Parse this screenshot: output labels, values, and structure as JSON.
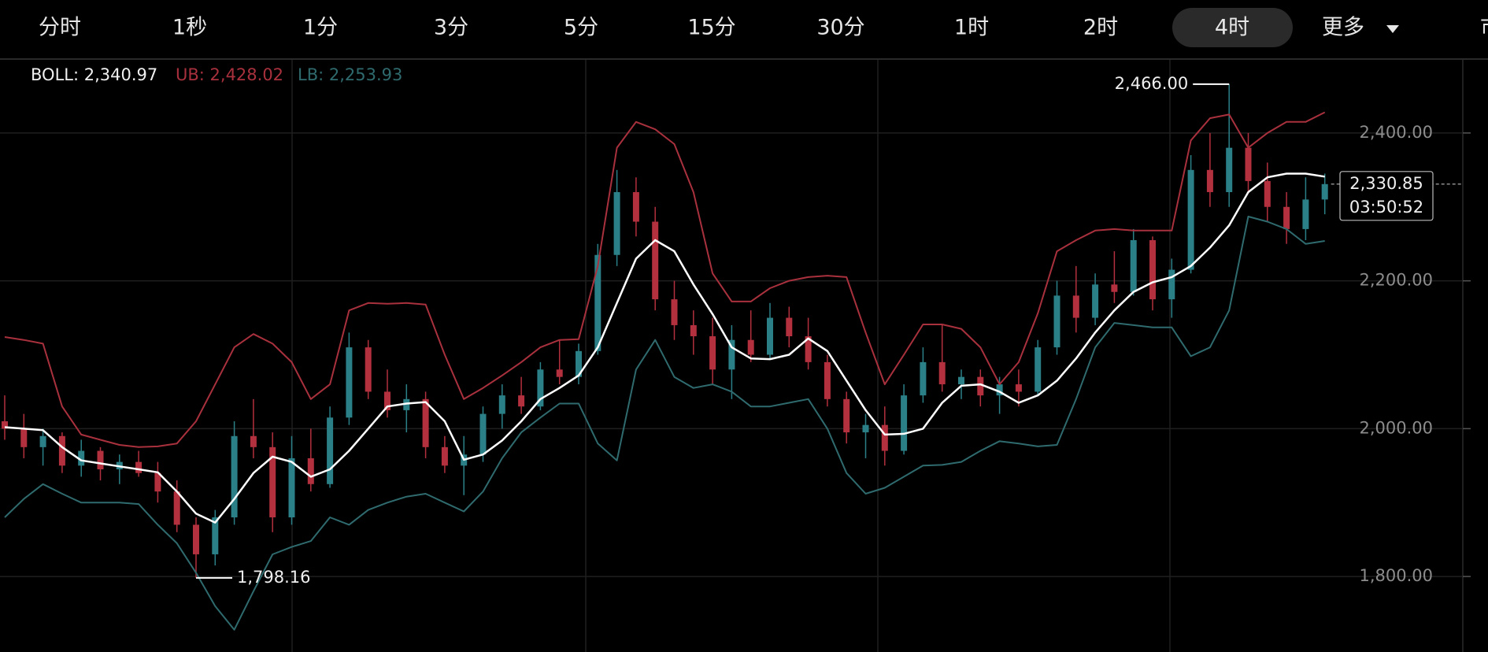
{
  "toolbar": {
    "tabs": [
      {
        "label": "分时"
      },
      {
        "label": "1秒"
      },
      {
        "label": "1分"
      },
      {
        "label": "3分"
      },
      {
        "label": "5分"
      },
      {
        "label": "15分"
      },
      {
        "label": "30分"
      },
      {
        "label": "1时"
      },
      {
        "label": "2时"
      },
      {
        "label": "4时",
        "active": true
      },
      {
        "label": "更多"
      }
    ],
    "edge_text": "市"
  },
  "chart_data": {
    "type": "candlestick",
    "legend": {
      "boll": "BOLL: 2,340.97",
      "ub": "UB: 2,428.02",
      "lb": "LB: 2,253.93"
    },
    "up_color": "#2b8088",
    "down_color": "#b3303e",
    "ylim": [
      1700,
      2500
    ],
    "yticks": [
      {
        "value": 1800,
        "label": "1,800.00"
      },
      {
        "value": 2000,
        "label": "2,000.00"
      },
      {
        "value": 2200,
        "label": "2,200.00"
      },
      {
        "value": 2400,
        "label": "2,400.00"
      }
    ],
    "grid": true,
    "candles": [
      [
        2010,
        2045,
        1985,
        2000
      ],
      [
        2000,
        2020,
        1960,
        1975
      ],
      [
        1975,
        2000,
        1950,
        1990
      ],
      [
        1990,
        1995,
        1940,
        1950
      ],
      [
        1950,
        1985,
        1935,
        1970
      ],
      [
        1970,
        1975,
        1930,
        1945
      ],
      [
        1945,
        1965,
        1925,
        1955
      ],
      [
        1955,
        1970,
        1935,
        1940
      ],
      [
        1940,
        1955,
        1900,
        1915
      ],
      [
        1915,
        1930,
        1860,
        1870
      ],
      [
        1870,
        1880,
        1798.16,
        1830
      ],
      [
        1830,
        1890,
        1815,
        1880
      ],
      [
        1880,
        2010,
        1870,
        1990
      ],
      [
        1990,
        2040,
        1960,
        1975
      ],
      [
        1975,
        1995,
        1860,
        1880
      ],
      [
        1880,
        1990,
        1870,
        1960
      ],
      [
        1960,
        2000,
        1915,
        1925
      ],
      [
        1925,
        2030,
        1920,
        2015
      ],
      [
        2015,
        2130,
        2005,
        2110
      ],
      [
        2110,
        2120,
        2040,
        2050
      ],
      [
        2050,
        2080,
        2015,
        2025
      ],
      [
        2025,
        2060,
        1995,
        2040
      ],
      [
        2040,
        2050,
        1960,
        1975
      ],
      [
        1975,
        1990,
        1940,
        1950
      ],
      [
        1950,
        1990,
        1910,
        1965
      ],
      [
        1965,
        2030,
        1955,
        2020
      ],
      [
        2020,
        2060,
        2000,
        2045
      ],
      [
        2045,
        2070,
        2020,
        2030
      ],
      [
        2030,
        2090,
        2025,
        2080
      ],
      [
        2080,
        2120,
        2060,
        2070
      ],
      [
        2070,
        2115,
        2060,
        2105
      ],
      [
        2105,
        2250,
        2100,
        2235
      ],
      [
        2235,
        2350,
        2220,
        2320
      ],
      [
        2320,
        2340,
        2260,
        2280
      ],
      [
        2280,
        2300,
        2160,
        2175
      ],
      [
        2175,
        2200,
        2120,
        2140
      ],
      [
        2140,
        2160,
        2100,
        2125
      ],
      [
        2125,
        2150,
        2060,
        2080
      ],
      [
        2080,
        2140,
        2040,
        2120
      ],
      [
        2120,
        2160,
        2090,
        2100
      ],
      [
        2100,
        2170,
        2095,
        2150
      ],
      [
        2150,
        2165,
        2110,
        2125
      ],
      [
        2125,
        2150,
        2080,
        2090
      ],
      [
        2090,
        2100,
        2030,
        2040
      ],
      [
        2040,
        2050,
        1980,
        1995
      ],
      [
        1995,
        2020,
        1960,
        2005
      ],
      [
        2005,
        2030,
        1950,
        1970
      ],
      [
        1970,
        2060,
        1965,
        2045
      ],
      [
        2045,
        2110,
        2035,
        2090
      ],
      [
        2090,
        2140,
        2050,
        2060
      ],
      [
        2060,
        2080,
        2040,
        2070
      ],
      [
        2070,
        2080,
        2030,
        2045
      ],
      [
        2045,
        2070,
        2020,
        2060
      ],
      [
        2060,
        2080,
        2030,
        2050
      ],
      [
        2050,
        2120,
        2045,
        2110
      ],
      [
        2110,
        2200,
        2100,
        2180
      ],
      [
        2180,
        2220,
        2130,
        2150
      ],
      [
        2150,
        2210,
        2140,
        2195
      ],
      [
        2195,
        2240,
        2170,
        2185
      ],
      [
        2185,
        2270,
        2180,
        2255
      ],
      [
        2255,
        2260,
        2160,
        2175
      ],
      [
        2175,
        2230,
        2150,
        2215
      ],
      [
        2215,
        2370,
        2210,
        2350
      ],
      [
        2350,
        2400,
        2300,
        2320
      ],
      [
        2320,
        2466,
        2300,
        2380
      ],
      [
        2380,
        2400,
        2320,
        2335
      ],
      [
        2335,
        2360,
        2280,
        2300
      ],
      [
        2300,
        2320,
        2250,
        2270
      ],
      [
        2270,
        2340,
        2255,
        2310
      ],
      [
        2310,
        2345,
        2290,
        2330.85
      ]
    ],
    "series": [
      {
        "name": "UB",
        "color": "#a8313d",
        "values": [
          2124,
          2120,
          2115,
          2030,
          1992,
          1985,
          1978,
          1975,
          1976,
          1980,
          2010,
          2060,
          2110,
          2128,
          2115,
          2090,
          2040,
          2060,
          2160,
          2170,
          2169,
          2170,
          2168,
          2100,
          2040,
          2055,
          2072,
          2090,
          2110,
          2120,
          2121,
          2220,
          2380,
          2415,
          2405,
          2385,
          2320,
          2210,
          2172,
          2172,
          2190,
          2200,
          2205,
          2207,
          2205,
          2130,
          2060,
          2100,
          2141,
          2141,
          2135,
          2110,
          2060,
          2090,
          2156,
          2240,
          2255,
          2268,
          2270,
          2268,
          2268,
          2268,
          2390,
          2420,
          2425,
          2380,
          2400,
          2415,
          2415,
          2428.02
        ]
      },
      {
        "name": "BOLL",
        "color": "#ffffff",
        "values": [
          2002,
          2000,
          1998,
          1975,
          1957,
          1953,
          1949,
          1945,
          1941,
          1915,
          1885,
          1873,
          1905,
          1940,
          1962,
          1955,
          1935,
          1945,
          1970,
          2000,
          2030,
          2034,
          2036,
          2010,
          1958,
          1965,
          1984,
          2010,
          2040,
          2055,
          2072,
          2110,
          2170,
          2230,
          2255,
          2240,
          2195,
          2155,
          2110,
          2095,
          2094,
          2100,
          2122,
          2105,
          2065,
          2025,
          1992,
          1993,
          2000,
          2035,
          2058,
          2060,
          2050,
          2035,
          2045,
          2065,
          2095,
          2130,
          2160,
          2185,
          2198,
          2205,
          2220,
          2245,
          2275,
          2320,
          2340,
          2345,
          2345,
          2340.97
        ]
      },
      {
        "name": "LB",
        "color": "#2f6b6e",
        "values": [
          1880,
          1905,
          1925,
          1912,
          1900,
          1900,
          1900,
          1898,
          1870,
          1845,
          1805,
          1760,
          1728,
          1780,
          1830,
          1840,
          1848,
          1880,
          1870,
          1890,
          1900,
          1908,
          1912,
          1900,
          1888,
          1915,
          1960,
          1995,
          2015,
          2034,
          2034,
          1980,
          1957,
          2080,
          2120,
          2070,
          2055,
          2060,
          2050,
          2030,
          2030,
          2035,
          2040,
          2000,
          1940,
          1912,
          1920,
          1935,
          1950,
          1951,
          1955,
          1970,
          1983,
          1980,
          1976,
          1978,
          2040,
          2110,
          2143,
          2140,
          2137,
          2137,
          2098,
          2110,
          2160,
          2287,
          2280,
          2270,
          2250,
          2253.93
        ]
      }
    ],
    "high_label": {
      "value": 2466,
      "label": "2,466.00"
    },
    "low_label": {
      "value": 1798.16,
      "label": "1,798.16"
    },
    "last_price": {
      "value": 2330.85,
      "label": "2,330.85",
      "countdown": "03:50:52"
    }
  }
}
